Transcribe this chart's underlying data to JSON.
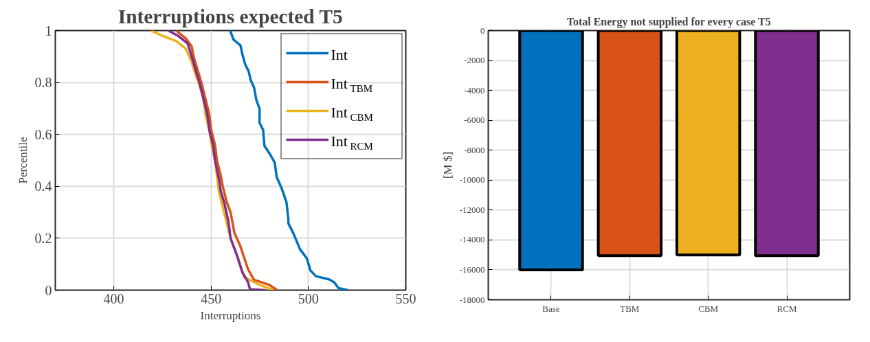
{
  "chart_data": [
    {
      "type": "line",
      "title": "Interruptions expected T5",
      "xlabel": "Interruptions",
      "ylabel": "Percentile",
      "xlim": [
        370,
        550
      ],
      "xticks": [
        400,
        450,
        500,
        550
      ],
      "ylim": [
        0,
        1
      ],
      "yticks": [
        0,
        0.2,
        0.4,
        0.6,
        0.8,
        1
      ],
      "grid": true,
      "legend": "top right",
      "series": [
        {
          "name": "Int",
          "color": "#0072bd",
          "x": [
            459.8,
            461.5,
            465.1,
            466.1,
            467.5,
            469.3,
            470.4,
            472.1,
            473.2,
            474.9,
            474.9,
            476.7,
            477.4,
            479.9,
            482.7,
            483.7,
            486.2,
            488.7,
            489.7,
            489.7,
            492.2,
            495.7,
            499.2,
            501.0,
            503.8,
            510.8,
            513.3,
            515.4,
            520.4
          ],
          "values": [
            1.0,
            0.965,
            0.943,
            0.908,
            0.87,
            0.843,
            0.808,
            0.78,
            0.734,
            0.699,
            0.645,
            0.618,
            0.556,
            0.528,
            0.491,
            0.436,
            0.393,
            0.339,
            0.274,
            0.257,
            0.22,
            0.157,
            0.122,
            0.076,
            0.054,
            0.041,
            0.03,
            0.008,
            0
          ]
        },
        {
          "name": "Int$_{TBM}$",
          "color": "#d95319",
          "x": [
            432,
            437,
            440,
            441,
            443,
            445,
            447,
            449,
            450,
            452,
            453,
            455,
            456,
            458,
            460,
            462,
            465,
            469,
            472,
            480,
            484
          ],
          "values": [
            1.0,
            0.97,
            0.94,
            0.9,
            0.85,
            0.8,
            0.74,
            0.68,
            0.62,
            0.56,
            0.5,
            0.44,
            0.4,
            0.34,
            0.3,
            0.22,
            0.17,
            0.08,
            0.04,
            0.02,
            0
          ]
        },
        {
          "name": "Int$_{CBM}$",
          "color": "#edb120",
          "x": [
            419,
            425,
            432,
            437,
            440,
            442,
            444,
            446,
            447,
            449,
            450,
            452,
            453,
            454,
            456,
            458,
            460,
            464,
            467,
            475,
            482
          ],
          "values": [
            1.0,
            0.98,
            0.96,
            0.93,
            0.88,
            0.83,
            0.79,
            0.74,
            0.68,
            0.62,
            0.57,
            0.5,
            0.44,
            0.38,
            0.32,
            0.26,
            0.2,
            0.12,
            0.05,
            0.02,
            0
          ]
        },
        {
          "name": "Int$_{RCM}$",
          "color": "#7e2f8e",
          "x": [
            428,
            433,
            438,
            440,
            442,
            444,
            446,
            448,
            449,
            451,
            452,
            454,
            455,
            457,
            459,
            460,
            463,
            466,
            469,
            470,
            478
          ],
          "values": [
            1.0,
            0.98,
            0.95,
            0.9,
            0.85,
            0.8,
            0.74,
            0.68,
            0.62,
            0.56,
            0.5,
            0.43,
            0.38,
            0.33,
            0.26,
            0.2,
            0.14,
            0.07,
            0.03,
            0.003,
            0
          ]
        }
      ]
    },
    {
      "type": "bar",
      "title": "Total Energy not supplied for every case T5",
      "ylabel": "[M $]",
      "categories": [
        "Base",
        "TBM",
        "CBM",
        "RCM"
      ],
      "values": [
        -16000,
        -15050,
        -15000,
        -15050
      ],
      "colors": [
        "#0072bd",
        "#d95319",
        "#edb120",
        "#7e2f8e"
      ],
      "ylim": [
        -18000,
        0
      ],
      "yticks": [
        -18000,
        -16000,
        -14000,
        -12000,
        -10000,
        -8000,
        -6000,
        -4000,
        -2000,
        0
      ],
      "grid": true
    }
  ]
}
